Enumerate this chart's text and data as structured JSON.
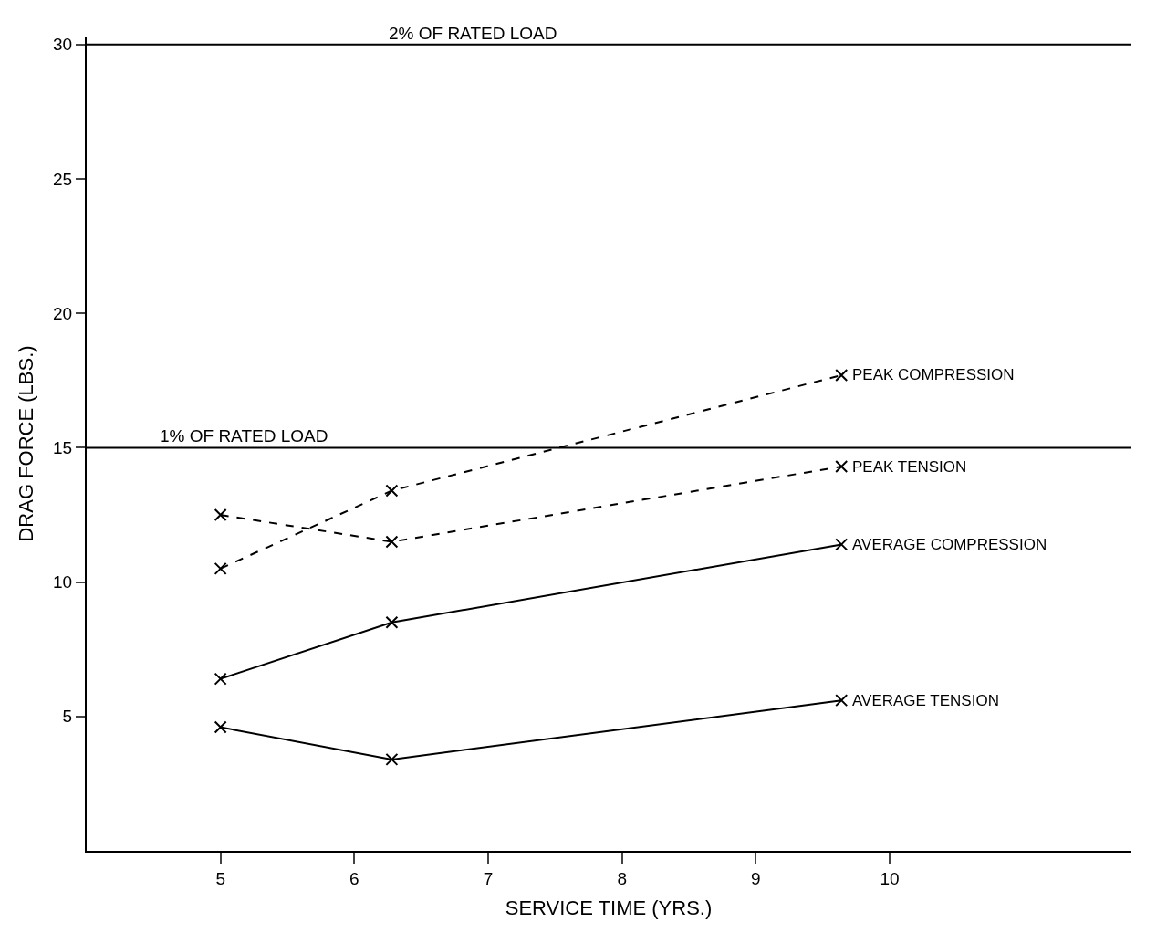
{
  "chart_data": {
    "type": "line",
    "xlabel": "SERVICE TIME (YRS.)",
    "ylabel": "DRAG FORCE (LBS.)",
    "xlim": [
      4,
      11.8
    ],
    "ylim": [
      0,
      30.3
    ],
    "xticks": [
      5,
      6,
      7,
      8,
      9,
      10
    ],
    "yticks": [
      5,
      10,
      15,
      20,
      25,
      30
    ],
    "legend": false,
    "marker": "cross",
    "series": [
      {
        "name": "PEAK COMPRESSION",
        "color": "#000000",
        "line_style": "dashed",
        "x": [
          5,
          6.28,
          9.64
        ],
        "values": [
          10.5,
          13.4,
          17.7
        ]
      },
      {
        "name": "PEAK TENSION",
        "color": "#000000",
        "line_style": "dashed",
        "x": [
          5,
          6.28,
          9.64
        ],
        "values": [
          12.5,
          11.5,
          14.3
        ]
      },
      {
        "name": "AVERAGE COMPRESSION",
        "color": "#000000",
        "line_style": "solid",
        "x": [
          5,
          6.28,
          9.64
        ],
        "values": [
          6.4,
          8.5,
          11.4
        ]
      },
      {
        "name": "AVERAGE TENSION",
        "color": "#000000",
        "line_style": "solid",
        "x": [
          5,
          6.28,
          9.64
        ],
        "values": [
          4.6,
          3.4,
          5.6
        ]
      }
    ],
    "ref_lines": [
      {
        "axis": "y",
        "value": 30,
        "label": "2% OF RATED LOAD",
        "color": "#000000"
      },
      {
        "axis": "y",
        "value": 15,
        "label": "1% OF RATED LOAD",
        "color": "#000000"
      }
    ]
  }
}
